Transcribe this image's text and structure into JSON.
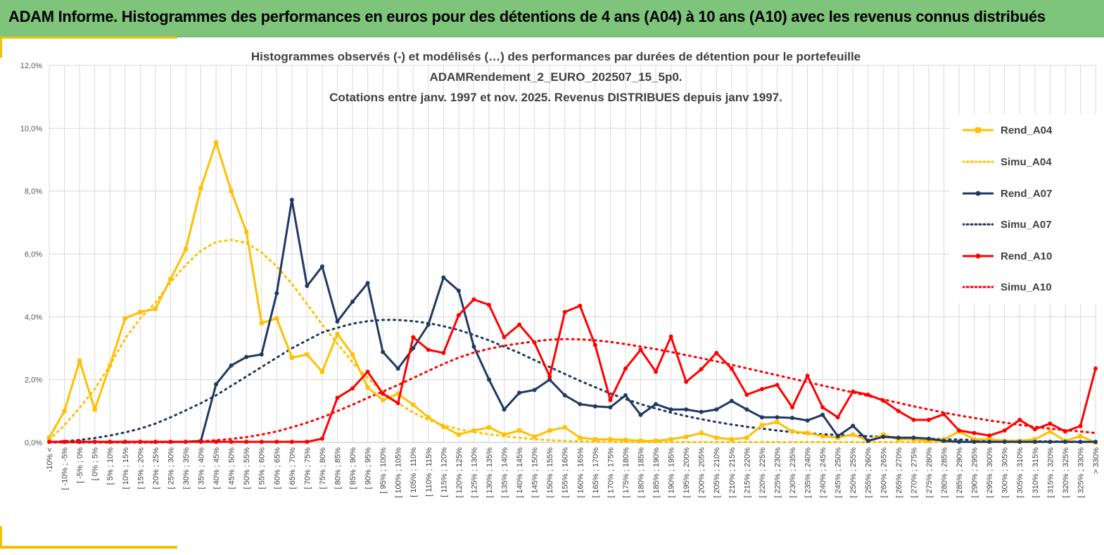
{
  "banner": {
    "title": "ADAM Informe. Histogrammes des performances en euros pour des détentions de 4 ans (A04) à 10 ans (A10) avec les revenus connus distribués"
  },
  "colors": {
    "banner_bg": "#7ec47a",
    "accent": "#f2c200",
    "a04": "#ffc000",
    "a07": "#1f3864",
    "a10": "#ff0000",
    "grid": "#d9d9d9"
  },
  "chart_data": {
    "type": "line",
    "title_lines": [
      "Histogrammes observés (-) et modélisés (…) des performances  par durées de détention pour le portefeuille",
      "ADAMRendement_2_EURO_202507_15_5p0.",
      "Cotations entre janv. 1997 et nov. 2025. Revenus DISTRIBUES depuis janv 1997."
    ],
    "y_ticks": [
      "0,0%",
      "2,0%",
      "4,0%",
      "6,0%",
      "8,0%",
      "10,0%",
      "12,0%"
    ],
    "ylim": [
      0,
      12
    ],
    "grid": true,
    "legend_position": "right",
    "categories": [
      "-10% <",
      "[ -10% ; -5%",
      "[ -5% ; 0%",
      "[ 0% ; 5%",
      "[ 5% ; 10%",
      "[ 10% ; 15%",
      "[ 15% ; 20%",
      "[ 20% ; 25%",
      "[ 25% ; 30%",
      "[ 30% ; 35%",
      "[ 35% ; 40%",
      "[ 40% ; 45%",
      "[ 45% ; 50%",
      "[ 50% ; 55%",
      "[ 55% ; 60%",
      "[ 60% ; 65%",
      "[ 65% ; 70%",
      "[ 70% ; 75%",
      "[ 75% ; 80%",
      "[ 80% ; 85%",
      "[ 85% ; 90%",
      "[ 90% ; 95%",
      "[ 95% ; 100%",
      "[ 100% ; 105%",
      "[ 105% ; 110%",
      "[ 110% ; 115%",
      "[ 115% ; 120%",
      "[ 120% ; 125%",
      "[ 125% ; 130%",
      "[ 130% ; 135%",
      "[ 135% ; 140%",
      "[ 140% ; 145%",
      "[ 145% ; 150%",
      "[ 150% ; 155%",
      "[ 155% ; 160%",
      "[ 160% ; 165%",
      "[ 165% ; 170%",
      "[ 170% ; 175%",
      "[ 175% ; 180%",
      "[ 180% ; 185%",
      "[ 185% ; 190%",
      "[ 190% ; 195%",
      "[ 195% ; 200%",
      "[ 200% ; 205%",
      "[ 205% ; 210%",
      "[ 210% ; 215%",
      "[ 215% ; 220%",
      "[ 220% ; 225%",
      "[ 225% ; 230%",
      "[ 230% ; 235%",
      "[ 235% ; 240%",
      "[ 240% ; 245%",
      "[ 245% ; 250%",
      "[ 250% ; 255%",
      "[ 255% ; 260%",
      "[ 260% ; 265%",
      "[ 265% ; 270%",
      "[ 270% ; 275%",
      "[ 275% ; 280%",
      "[ 280% ; 285%",
      "[ 285% ; 290%",
      "[ 290% ; 295%",
      "[ 295% ; 300%",
      "[ 300% ; 305%",
      "[ 305% ; 310%",
      "[ 310% ; 315%",
      "[ 315% ; 320%",
      "[ 320% ; 325%",
      "[ 325% ; 330%",
      "> 330%"
    ],
    "series": [
      {
        "name": "Rend_A04",
        "style": "solid-square",
        "color": "#ffc000",
        "values": [
          0.15,
          1.0,
          2.6,
          1.05,
          2.45,
          3.95,
          4.15,
          4.25,
          5.2,
          6.15,
          8.1,
          9.55,
          8.0,
          6.7,
          3.8,
          3.95,
          2.7,
          2.8,
          2.25,
          3.45,
          2.8,
          1.75,
          1.35,
          1.55,
          1.2,
          0.8,
          0.5,
          0.25,
          0.38,
          0.48,
          0.25,
          0.38,
          0.18,
          0.38,
          0.48,
          0.15,
          0.1,
          0.1,
          0.08,
          0.05,
          0.05,
          0.1,
          0.18,
          0.3,
          0.15,
          0.1,
          0.15,
          0.55,
          0.65,
          0.35,
          0.3,
          0.2,
          0.15,
          0.25,
          0.05,
          0.25,
          0.1,
          0.1,
          0.05,
          0.1,
          0.35,
          0.1,
          0.1,
          0.05,
          0.05,
          0.1,
          0.35,
          0.05,
          0.2,
          0.0
        ]
      },
      {
        "name": "Simu_A04",
        "style": "dotted",
        "color": "#ffc000",
        "values": [
          0.08,
          0.55,
          1.1,
          1.7,
          2.45,
          3.3,
          3.95,
          4.45,
          5.1,
          5.65,
          6.1,
          6.38,
          6.45,
          6.35,
          6.05,
          5.6,
          5.05,
          4.4,
          3.75,
          3.15,
          2.55,
          2.05,
          1.6,
          1.25,
          0.95,
          0.72,
          0.55,
          0.42,
          0.33,
          0.26,
          0.2,
          0.15,
          0.1,
          0.07,
          0.05,
          0.04,
          0.03,
          0.02,
          0.02,
          0.01,
          0.01,
          0.01,
          0.01,
          0.01,
          0.01,
          0.01,
          0.01,
          0.01,
          0.01,
          0.01,
          0.01,
          0.01,
          0.01,
          0.01,
          0.01,
          0.01,
          0.01,
          0.01,
          0.01,
          0.01,
          0.01,
          0.01,
          0.01,
          0.01,
          0.01,
          0.01,
          0.01,
          0.01,
          0.01,
          0.01
        ]
      },
      {
        "name": "Rend_A07",
        "style": "solid-circle",
        "color": "#1f3864",
        "values": [
          0.02,
          0.02,
          0.02,
          0.02,
          0.02,
          0.02,
          0.02,
          0.02,
          0.02,
          0.02,
          0.05,
          1.85,
          2.45,
          2.72,
          2.8,
          4.75,
          7.72,
          4.98,
          5.6,
          3.85,
          4.48,
          5.07,
          2.88,
          2.35,
          3.0,
          3.75,
          5.25,
          4.83,
          3.05,
          2.0,
          1.05,
          1.58,
          1.67,
          2.0,
          1.5,
          1.22,
          1.15,
          1.12,
          1.5,
          0.88,
          1.22,
          1.05,
          1.05,
          0.97,
          1.05,
          1.32,
          1.05,
          0.8,
          0.8,
          0.78,
          0.7,
          0.88,
          0.2,
          0.53,
          0.05,
          0.18,
          0.15,
          0.15,
          0.12,
          0.05,
          0.02,
          0.02,
          0.02,
          0.02,
          0.02,
          0.02,
          0.02,
          0.02,
          0.02,
          0.02
        ]
      },
      {
        "name": "Simu_A07",
        "style": "dotted",
        "color": "#1f3864",
        "values": [
          0.01,
          0.04,
          0.08,
          0.14,
          0.22,
          0.32,
          0.44,
          0.6,
          0.8,
          1.02,
          1.25,
          1.5,
          1.8,
          2.1,
          2.4,
          2.7,
          3.0,
          3.25,
          3.5,
          3.65,
          3.78,
          3.86,
          3.9,
          3.9,
          3.86,
          3.8,
          3.7,
          3.58,
          3.42,
          3.25,
          3.05,
          2.85,
          2.62,
          2.4,
          2.18,
          1.96,
          1.76,
          1.56,
          1.38,
          1.22,
          1.08,
          0.95,
          0.84,
          0.74,
          0.65,
          0.57,
          0.5,
          0.44,
          0.38,
          0.33,
          0.29,
          0.26,
          0.24,
          0.22,
          0.2,
          0.18,
          0.16,
          0.14,
          0.12,
          0.1,
          0.09,
          0.08,
          0.07,
          0.06,
          0.05,
          0.04,
          0.03,
          0.03,
          0.02,
          0.02
        ]
      },
      {
        "name": "Rend_A10",
        "style": "solid-circle",
        "color": "#ff0000",
        "values": [
          0.02,
          0.02,
          0.02,
          0.02,
          0.02,
          0.02,
          0.02,
          0.02,
          0.02,
          0.02,
          0.02,
          0.02,
          0.02,
          0.02,
          0.02,
          0.02,
          0.02,
          0.02,
          0.12,
          1.42,
          1.72,
          2.25,
          1.55,
          1.25,
          3.35,
          2.95,
          2.85,
          4.05,
          4.55,
          4.38,
          3.35,
          3.75,
          3.18,
          2.1,
          4.15,
          4.35,
          3.1,
          1.35,
          2.35,
          2.95,
          2.25,
          3.37,
          1.93,
          2.33,
          2.85,
          2.35,
          1.52,
          1.7,
          1.83,
          1.12,
          2.12,
          1.12,
          0.8,
          1.62,
          1.52,
          1.33,
          1.0,
          0.72,
          0.72,
          0.9,
          0.38,
          0.3,
          0.22,
          0.38,
          0.72,
          0.42,
          0.6,
          0.35,
          0.52,
          2.35
        ]
      },
      {
        "name": "Simu_A10",
        "style": "dotted",
        "color": "#ff0000",
        "values": [
          0.0,
          0.0,
          0.0,
          0.0,
          0.0,
          0.0,
          0.0,
          0.0,
          0.01,
          0.02,
          0.04,
          0.07,
          0.11,
          0.17,
          0.25,
          0.35,
          0.48,
          0.63,
          0.8,
          1.0,
          1.2,
          1.42,
          1.62,
          1.83,
          2.05,
          2.28,
          2.5,
          2.7,
          2.86,
          2.98,
          3.08,
          3.15,
          3.22,
          3.27,
          3.29,
          3.28,
          3.25,
          3.2,
          3.13,
          3.05,
          2.97,
          2.88,
          2.78,
          2.68,
          2.58,
          2.47,
          2.36,
          2.25,
          2.14,
          2.03,
          1.92,
          1.81,
          1.7,
          1.59,
          1.48,
          1.37,
          1.26,
          1.15,
          1.05,
          0.95,
          0.86,
          0.78,
          0.7,
          0.63,
          0.56,
          0.5,
          0.44,
          0.39,
          0.35,
          0.3
        ]
      }
    ]
  }
}
